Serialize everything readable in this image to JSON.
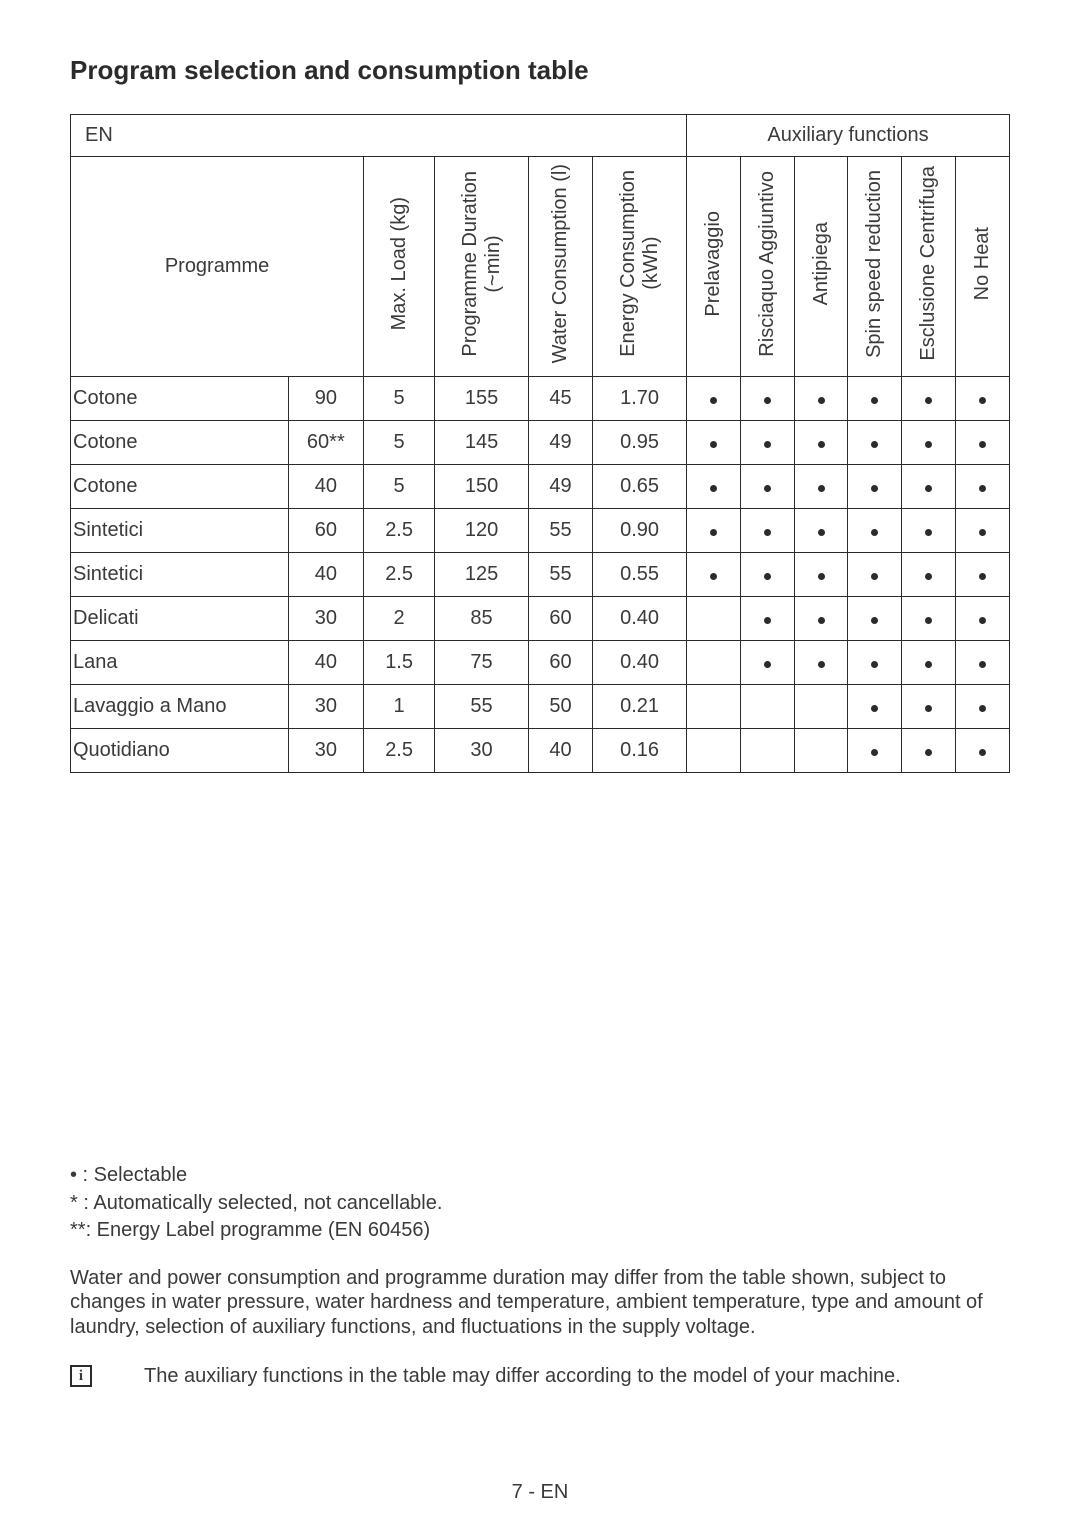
{
  "title": "Program selection and consumption table",
  "table": {
    "group_headers": {
      "left": "EN",
      "right": "Auxiliary functions"
    },
    "columns": {
      "programme": "Programme",
      "max_load": "Max. Load (kg)",
      "duration": "Programme Duration (~min)",
      "water": "Water Consumption (l)",
      "energy": "Energy Consumption (kWh)",
      "aux": [
        "Prelavaggio",
        "Risciaquo Aggiuntivo",
        "Antipiega",
        "Spin speed reduction",
        "Esclusione Centrifuga",
        "No Heat"
      ]
    },
    "rows": [
      {
        "name": "Cotone",
        "temp": "90",
        "load": "5",
        "dur": "155",
        "water": "45",
        "energy": "1.70",
        "aux": [
          true,
          true,
          true,
          true,
          true,
          true
        ]
      },
      {
        "name": "Cotone",
        "temp": "60**",
        "load": "5",
        "dur": "145",
        "water": "49",
        "energy": "0.95",
        "aux": [
          true,
          true,
          true,
          true,
          true,
          true
        ]
      },
      {
        "name": "Cotone",
        "temp": "40",
        "load": "5",
        "dur": "150",
        "water": "49",
        "energy": "0.65",
        "aux": [
          true,
          true,
          true,
          true,
          true,
          true
        ]
      },
      {
        "name": "Sintetici",
        "temp": "60",
        "load": "2.5",
        "dur": "120",
        "water": "55",
        "energy": "0.90",
        "aux": [
          true,
          true,
          true,
          true,
          true,
          true
        ]
      },
      {
        "name": "Sintetici",
        "temp": "40",
        "load": "2.5",
        "dur": "125",
        "water": "55",
        "energy": "0.55",
        "aux": [
          true,
          true,
          true,
          true,
          true,
          true
        ]
      },
      {
        "name": "Delicati",
        "temp": "30",
        "load": "2",
        "dur": "85",
        "water": "60",
        "energy": "0.40",
        "aux": [
          false,
          true,
          true,
          true,
          true,
          true
        ]
      },
      {
        "name": "Lana",
        "temp": "40",
        "load": "1.5",
        "dur": "75",
        "water": "60",
        "energy": "0.40",
        "aux": [
          false,
          true,
          true,
          true,
          true,
          true
        ]
      },
      {
        "name": "Lavaggio a Mano",
        "temp": "30",
        "load": "1",
        "dur": "55",
        "water": "50",
        "energy": "0.21",
        "aux": [
          false,
          false,
          false,
          true,
          true,
          true
        ]
      },
      {
        "name": "Quotidiano",
        "temp": "30",
        "load": "2.5",
        "dur": "30",
        "water": "40",
        "energy": "0.16",
        "aux": [
          false,
          false,
          false,
          true,
          true,
          true
        ]
      }
    ]
  },
  "legend": {
    "l1": "• : Selectable",
    "l2": "* : Automatically selected, not cancellable.",
    "l3": "**: Energy Label programme (EN 60456)"
  },
  "paragraph": "Water and power consumption and programme duration may differ from the table shown, subject to changes in water pressure, water hardness and temperature, ambient temperature, type and amount of laundry, selection of auxiliary functions, and fluctuations in the supply voltage.",
  "info_note": "The auxiliary functions in the table may differ according to the model of your machine.",
  "page": "7 - EN"
}
